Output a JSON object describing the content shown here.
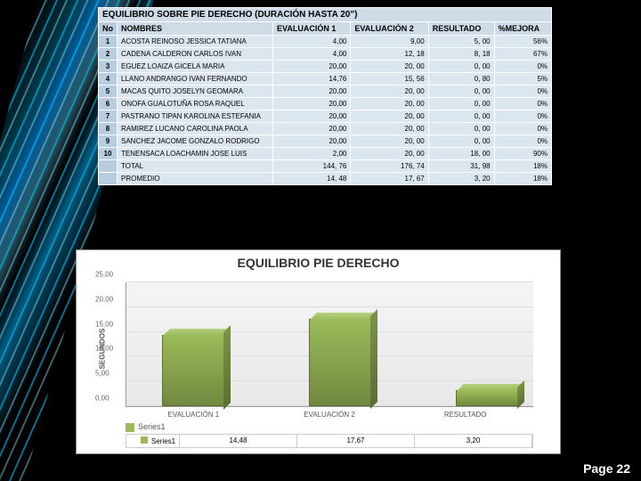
{
  "table": {
    "title": "EQUILIBRIO SOBRE  PIE DERECHO (DURACIÓN HASTA 20\")",
    "headers": {
      "no": "No",
      "nombres": "NOMBRES",
      "ev1": "EVALUACIÓN 1",
      "ev2": "EVALUACIÓN 2",
      "res": "RESULTADO",
      "mej": "%MEJORA"
    },
    "rows": [
      {
        "n": "1",
        "name": "ACOSTA REINOSO JESSICA TATIANA",
        "e1": "4,00",
        "e2": "9,00",
        "r": "5, 00",
        "m": "56%"
      },
      {
        "n": "2",
        "name": "CADENA CALDERON CARLOS IVAN",
        "e1": "4,00",
        "e2": "12, 18",
        "r": "8, 18",
        "m": "67%"
      },
      {
        "n": "3",
        "name": "EGUEZ LOAIZA GICELA MARIA",
        "e1": "20,00",
        "e2": "20, 00",
        "r": "0, 00",
        "m": "0%"
      },
      {
        "n": "4",
        "name": "LLANO ANDRANGO IVAN FERNANDO",
        "e1": "14,76",
        "e2": "15, 56",
        "r": "0, 80",
        "m": "5%"
      },
      {
        "n": "5",
        "name": "MACAS QUITO JOSELYN GEOMARA",
        "e1": "20,00",
        "e2": "20, 00",
        "r": "0, 00",
        "m": "0%"
      },
      {
        "n": "6",
        "name": "ONOFA GUALOTUÑA ROSA RAQUEL",
        "e1": "20,00",
        "e2": "20, 00",
        "r": "0, 00",
        "m": "0%"
      },
      {
        "n": "7",
        "name": "PASTRANO TIPAN KAROLINA ESTEFANIA",
        "e1": "20,00",
        "e2": "20, 00",
        "r": "0, 00",
        "m": "0%"
      },
      {
        "n": "8",
        "name": "RAMIREZ LUCANO CAROLINA PAOLA",
        "e1": "20,00",
        "e2": "20, 00",
        "r": "0, 00",
        "m": "0%"
      },
      {
        "n": "9",
        "name": "SANCHEZ JACOME GONZALO RODRIGO",
        "e1": "20,00",
        "e2": "20, 00",
        "r": "0, 00",
        "m": "0%"
      },
      {
        "n": "10",
        "name": "TENENSACA LOACHAMIN JOSE LUIS",
        "e1": "2,00",
        "e2": "20, 00",
        "r": "18, 00",
        "m": "90%"
      }
    ],
    "total": {
      "label": "TOTAL",
      "e1": "144, 76",
      "e2": "176, 74",
      "r": "31, 98",
      "m": "18%"
    },
    "promedio": {
      "label": "PROMEDIO",
      "e1": "14, 48",
      "e2": "17, 67",
      "r": "3, 20",
      "m": "18%"
    }
  },
  "chart": {
    "title": "EQUILIBRIO PIE DERECHO",
    "type": "bar",
    "y_label": "SEGUNDOS",
    "y_ticks": [
      "0,00",
      "5,00",
      "10,00",
      "15,00",
      "20,00",
      "25,00"
    ],
    "ylim": [
      0,
      25
    ],
    "categories": [
      "EVALUACIÓN 1",
      "EVALUACIÓN 2",
      "RESULTADO"
    ],
    "values": [
      14.48,
      17.67,
      3.2
    ],
    "value_labels": [
      "14,48",
      "17,67",
      "3,20"
    ],
    "series_label": "Series1",
    "bar_color": "#9bbb59",
    "bar_color_dark": "#71893f",
    "background": "#ffffff",
    "grid_color": "#dddddd"
  },
  "page": "Page 22"
}
